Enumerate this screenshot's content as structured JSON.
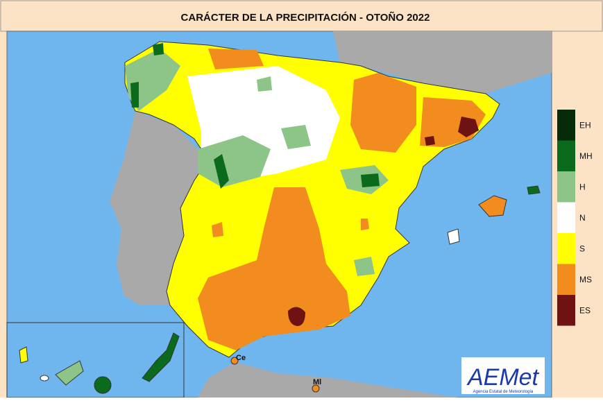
{
  "header": {
    "title": "CARÁCTER DE LA PRECIPITACIÓN - OTOÑO  2022"
  },
  "legend": {
    "items": [
      {
        "label": "EH",
        "color": "#062b08"
      },
      {
        "label": "MH",
        "color": "#0b6b1c"
      },
      {
        "label": "H",
        "color": "#8cc587"
      },
      {
        "label": "N",
        "color": "#ffffff"
      },
      {
        "label": "S",
        "color": "#ffff00"
      },
      {
        "label": "MS",
        "color": "#f28c1e"
      },
      {
        "label": "ES",
        "color": "#6e1212"
      }
    ]
  },
  "map": {
    "places": [
      "Ce",
      "Ml"
    ]
  },
  "logo": {
    "name": "AEMet",
    "subtitle": "Agencia Estatal de Meteorología"
  }
}
